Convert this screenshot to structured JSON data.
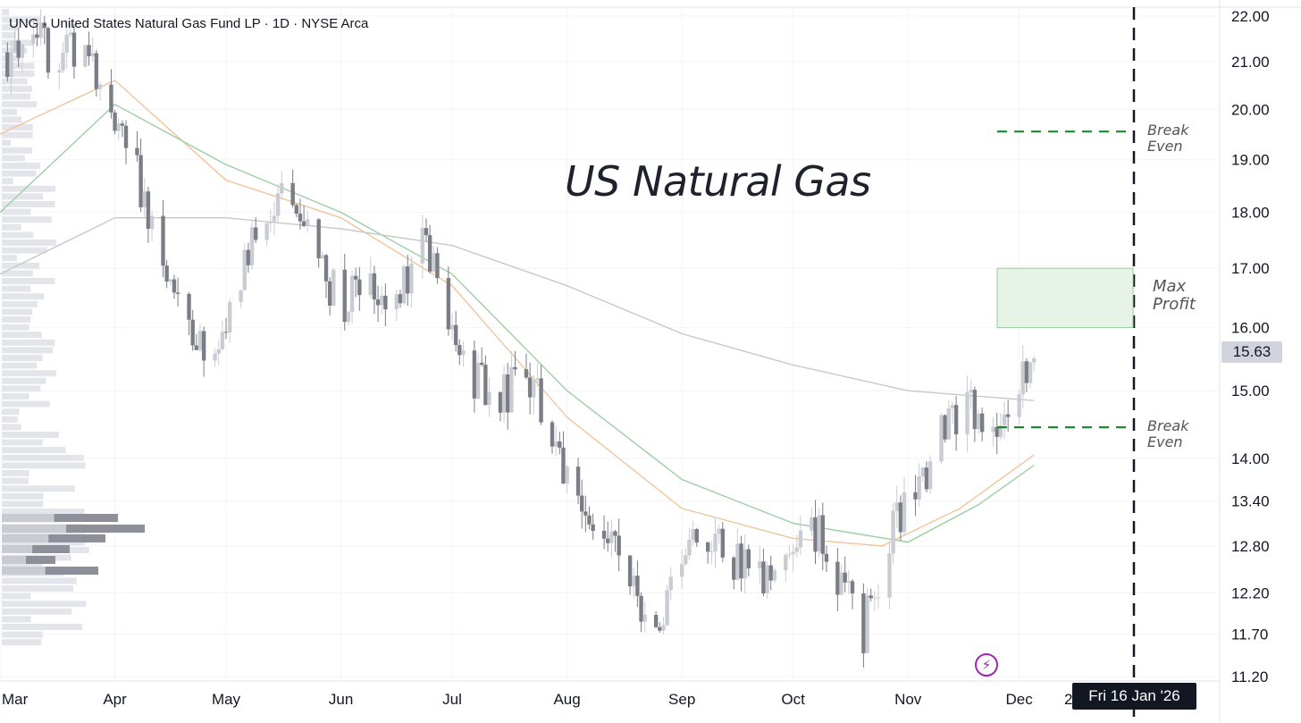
{
  "header": {
    "symbol_info": "UNG · United States Natural Gas Fund LP · 1D · NYSE Arca"
  },
  "overlay_title": "US Natural Gas",
  "price_scale": {
    "labels": [
      "22.00",
      "21.00",
      "20.00",
      "19.00",
      "18.00",
      "17.00",
      "16.00",
      "15.00",
      "14.00",
      "13.40",
      "12.80",
      "12.20",
      "11.70",
      "11.20"
    ],
    "current_price": "15.63"
  },
  "time_scale": {
    "labels": [
      "Mar",
      "Apr",
      "May",
      "Jun",
      "Jul",
      "Aug",
      "Sep",
      "Oct",
      "Nov",
      "Dec"
    ],
    "partial_label": "2",
    "cursor_date": "Fri 16 Jan '26"
  },
  "annotations": {
    "break_even_upper": {
      "label_line1": "Break",
      "label_line2": "Even",
      "price": 19.55
    },
    "break_even_lower": {
      "label_line1": "Break",
      "label_line2": "Even",
      "price": 14.45
    },
    "max_profit_zone": {
      "label_line1": "Max",
      "label_line2": "Profit",
      "price_low": 16.0,
      "price_high": 17.0
    },
    "expiry_marker": {
      "date": "2026-01-16"
    }
  },
  "colors": {
    "up_candle": "#c9ccd3",
    "down_candle": "#7a7d86",
    "ma_orange": "#f2c49b",
    "ma_green": "#9ccfa6",
    "ma_gray": "#c8c8c8",
    "break_even": "#1b8a2e",
    "profit_zone_fill": "#e8f3e8",
    "profit_zone_border": "#9cc99f",
    "event_icon": "#9c27b0"
  },
  "chart_data": {
    "type": "candlestick",
    "title": "US Natural Gas",
    "x_axis": {
      "type": "date",
      "range": [
        "2025-03-01",
        "2026-01-20"
      ]
    },
    "y_axis": {
      "range": [
        11.15,
        22.2
      ],
      "scale": "log"
    },
    "candles_approx": [
      {
        "date": "2025-03-03",
        "close": 21.2
      },
      {
        "date": "2025-03-10",
        "close": 21.6
      },
      {
        "date": "2025-03-17",
        "close": 21.0
      },
      {
        "date": "2025-03-24",
        "close": 21.4
      },
      {
        "date": "2025-03-31",
        "close": 20.2
      },
      {
        "date": "2025-04-07",
        "close": 18.8
      },
      {
        "date": "2025-04-14",
        "close": 17.0
      },
      {
        "date": "2025-04-21",
        "close": 15.9
      },
      {
        "date": "2025-04-28",
        "close": 15.4
      },
      {
        "date": "2025-05-05",
        "close": 16.8
      },
      {
        "date": "2025-05-12",
        "close": 18.0
      },
      {
        "date": "2025-05-19",
        "close": 18.3
      },
      {
        "date": "2025-05-26",
        "close": 17.0
      },
      {
        "date": "2025-06-02",
        "close": 16.4
      },
      {
        "date": "2025-06-09",
        "close": 16.6
      },
      {
        "date": "2025-06-16",
        "close": 16.3
      },
      {
        "date": "2025-06-23",
        "close": 17.6
      },
      {
        "date": "2025-06-30",
        "close": 16.0
      },
      {
        "date": "2025-07-07",
        "close": 15.1
      },
      {
        "date": "2025-07-14",
        "close": 14.9
      },
      {
        "date": "2025-07-21",
        "close": 15.3
      },
      {
        "date": "2025-07-28",
        "close": 14.2
      },
      {
        "date": "2025-08-04",
        "close": 13.6
      },
      {
        "date": "2025-08-11",
        "close": 13.1
      },
      {
        "date": "2025-08-18",
        "close": 12.3
      },
      {
        "date": "2025-08-25",
        "close": 11.9
      },
      {
        "date": "2025-09-01",
        "close": 12.5
      },
      {
        "date": "2025-09-08",
        "close": 13.0
      },
      {
        "date": "2025-09-15",
        "close": 12.6
      },
      {
        "date": "2025-09-22",
        "close": 12.3
      },
      {
        "date": "2025-09-29",
        "close": 12.5
      },
      {
        "date": "2025-10-06",
        "close": 13.1
      },
      {
        "date": "2025-10-13",
        "close": 12.4
      },
      {
        "date": "2025-10-20",
        "close": 11.7
      },
      {
        "date": "2025-10-27",
        "close": 12.9
      },
      {
        "date": "2025-11-03",
        "close": 13.6
      },
      {
        "date": "2025-11-10",
        "close": 14.3
      },
      {
        "date": "2025-11-17",
        "close": 14.7
      },
      {
        "date": "2025-11-24",
        "close": 14.5
      },
      {
        "date": "2025-12-01",
        "close": 15.0
      },
      {
        "date": "2025-12-05",
        "close": 15.63
      }
    ],
    "moving_averages": [
      {
        "color": "#f2c49b",
        "points": [
          [
            "2025-03-01",
            19.5
          ],
          [
            "2025-04-01",
            20.6
          ],
          [
            "2025-05-01",
            18.6
          ],
          [
            "2025-06-01",
            17.9
          ],
          [
            "2025-07-01",
            16.7
          ],
          [
            "2025-08-01",
            14.6
          ],
          [
            "2025-09-01",
            13.3
          ],
          [
            "2025-10-01",
            12.9
          ],
          [
            "2025-10-25",
            12.8
          ],
          [
            "2025-11-15",
            13.3
          ],
          [
            "2025-12-05",
            14.05
          ]
        ]
      },
      {
        "color": "#9ccfa6",
        "points": [
          [
            "2025-03-01",
            18.0
          ],
          [
            "2025-04-01",
            20.1
          ],
          [
            "2025-05-01",
            18.9
          ],
          [
            "2025-06-01",
            18.0
          ],
          [
            "2025-07-01",
            16.9
          ],
          [
            "2025-08-01",
            15.0
          ],
          [
            "2025-09-01",
            13.7
          ],
          [
            "2025-10-01",
            13.1
          ],
          [
            "2025-11-01",
            12.85
          ],
          [
            "2025-11-20",
            13.35
          ],
          [
            "2025-12-05",
            13.9
          ]
        ]
      },
      {
        "color": "#c8c8c8",
        "points": [
          [
            "2025-03-01",
            16.9
          ],
          [
            "2025-04-01",
            17.9
          ],
          [
            "2025-05-01",
            17.9
          ],
          [
            "2025-06-01",
            17.7
          ],
          [
            "2025-07-01",
            17.4
          ],
          [
            "2025-08-01",
            16.7
          ],
          [
            "2025-09-01",
            15.9
          ],
          [
            "2025-10-01",
            15.4
          ],
          [
            "2025-11-01",
            15.0
          ],
          [
            "2025-12-05",
            14.85
          ]
        ]
      }
    ]
  }
}
